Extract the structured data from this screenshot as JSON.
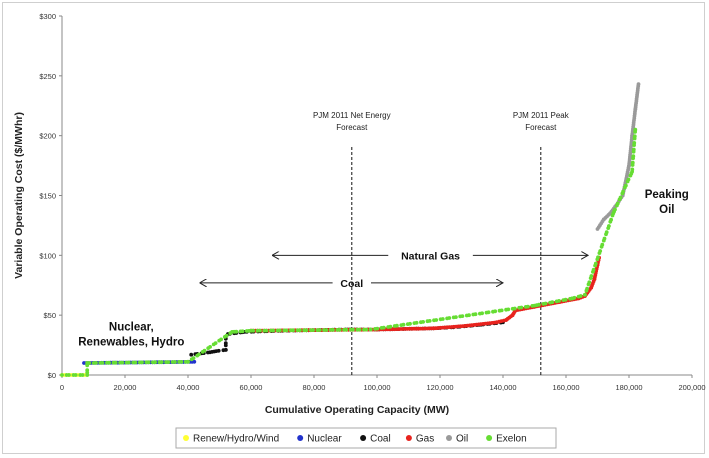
{
  "chart_data": {
    "type": "scatter",
    "xlabel": "Cumulative Operating Capacity (MW)",
    "ylabel": "Variable Operating Cost ($/MWhr)",
    "xlim": [
      0,
      200000
    ],
    "ylim": [
      0,
      300
    ],
    "x_ticks": [
      "0",
      "20,000",
      "40,000",
      "60,000",
      "80,000",
      "100,000",
      "120,000",
      "140,000",
      "160,000",
      "180,000",
      "200,000"
    ],
    "y_ticks": [
      "$0",
      "$50",
      "$100",
      "$150",
      "$200",
      "$250",
      "$300"
    ],
    "grid": false,
    "legend_position": "bottom",
    "legend": [
      {
        "name": "Renew/Hydro/Wind",
        "color": "#ffff33"
      },
      {
        "name": "Nuclear",
        "color": "#2233cc"
      },
      {
        "name": "Coal",
        "color": "#111111"
      },
      {
        "name": "Gas",
        "color": "#e8231e"
      },
      {
        "name": "Oil",
        "color": "#9a9a9a"
      },
      {
        "name": "Exelon",
        "color": "#66dd33"
      }
    ],
    "series": [
      {
        "name": "Renew/Hydro/Wind",
        "points": [
          [
            0,
            0
          ],
          [
            8000,
            0
          ]
        ]
      },
      {
        "name": "Nuclear",
        "points": [
          [
            7000,
            10
          ],
          [
            42000,
            11
          ]
        ]
      },
      {
        "name": "Exelon",
        "points": [
          [
            0,
            0
          ],
          [
            8000,
            0
          ],
          [
            8000,
            10
          ],
          [
            40000,
            11
          ],
          [
            54000,
            36
          ],
          [
            60000,
            37
          ],
          [
            98000,
            38
          ],
          [
            150000,
            58
          ],
          [
            162000,
            64
          ],
          [
            166000,
            67
          ],
          [
            175000,
            135
          ],
          [
            181000,
            170
          ],
          [
            182000,
            205
          ]
        ]
      },
      {
        "name": "Coal",
        "points": [
          [
            41000,
            17
          ],
          [
            47000,
            19
          ],
          [
            49000,
            20
          ],
          [
            52000,
            21
          ],
          [
            52000,
            34
          ],
          [
            58000,
            36
          ],
          [
            70000,
            37
          ],
          [
            90000,
            38
          ],
          [
            100000,
            38
          ],
          [
            118000,
            39
          ],
          [
            125000,
            40
          ],
          [
            133000,
            42
          ],
          [
            140000,
            44
          ]
        ]
      },
      {
        "name": "Gas",
        "points": [
          [
            60000,
            37
          ],
          [
            100000,
            38
          ],
          [
            118000,
            39
          ],
          [
            128000,
            41
          ],
          [
            138000,
            44
          ],
          [
            141000,
            46
          ],
          [
            143000,
            50
          ],
          [
            144000,
            54
          ],
          [
            150000,
            57
          ],
          [
            158000,
            61
          ],
          [
            164000,
            64
          ],
          [
            166000,
            66
          ],
          [
            168000,
            73
          ],
          [
            169000,
            80
          ],
          [
            170000,
            92
          ],
          [
            170500,
            98
          ]
        ]
      },
      {
        "name": "Oil",
        "points": [
          [
            170000,
            122
          ],
          [
            172000,
            130
          ],
          [
            174000,
            135
          ],
          [
            176000,
            142
          ],
          [
            178000,
            150
          ],
          [
            180000,
            175
          ],
          [
            181000,
            200
          ],
          [
            182000,
            222
          ],
          [
            183000,
            243
          ]
        ]
      }
    ],
    "reference_lines": [
      {
        "x": 92000,
        "label_lines": [
          "PJM 2011 Net Energy",
          "Forecast"
        ]
      },
      {
        "x": 152000,
        "label_lines": [
          "PJM 2011 Peak",
          "Forecast"
        ]
      }
    ],
    "range_annotations": [
      {
        "label": "Natural Gas",
        "x_start": 67000,
        "x_end": 167000,
        "y": 100
      },
      {
        "label": "Coal",
        "x_start": 44000,
        "x_end": 140000,
        "y": 77
      }
    ],
    "group_labels": [
      {
        "lines": [
          "Nuclear,",
          "Renewables, Hydro"
        ],
        "x": 22000,
        "y": 37
      },
      {
        "lines": [
          "Peaking",
          "Oil"
        ],
        "x": 192000,
        "y": 148
      }
    ]
  }
}
